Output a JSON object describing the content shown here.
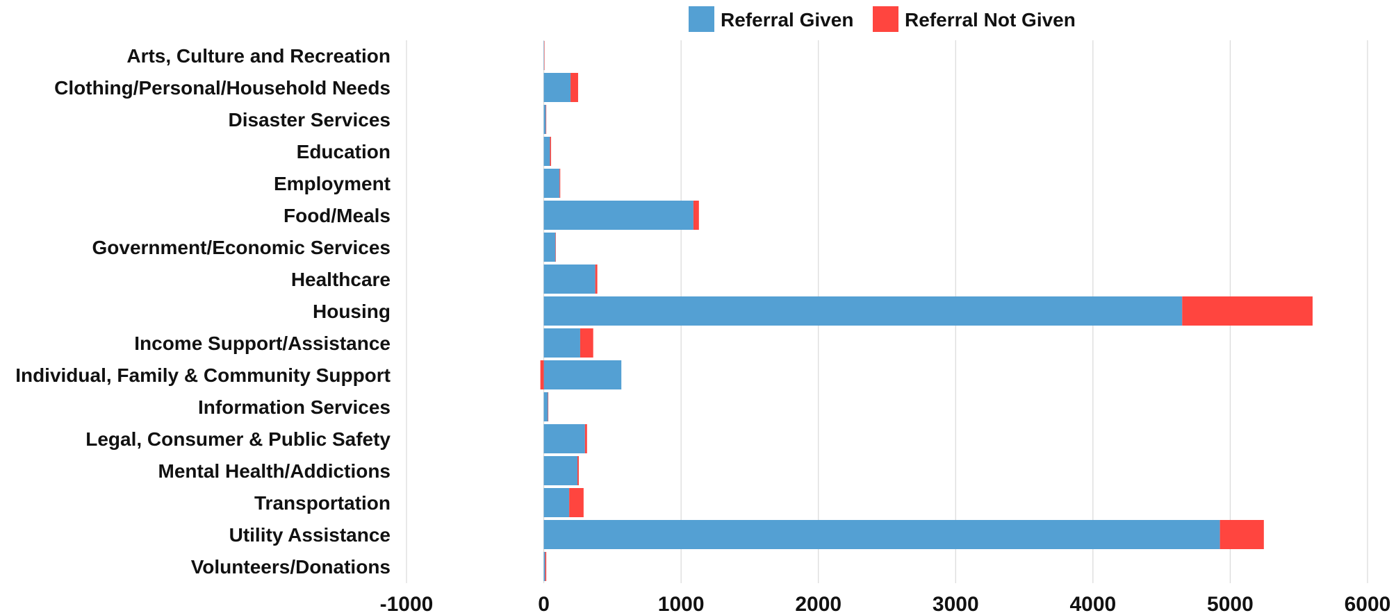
{
  "chart_data": {
    "type": "bar",
    "orientation": "horizontal",
    "stacked": true,
    "categories": [
      "Arts, Culture and Recreation",
      "Clothing/Personal/Household Needs",
      "Disaster Services",
      "Education",
      "Employment",
      "Food/Meals",
      "Government/Economic Services",
      "Healthcare",
      "Housing",
      "Income Support/Assistance",
      "Individual, Family & Community Support",
      "Information Services",
      "Legal, Consumer & Public Safety",
      "Mental Health/Addictions",
      "Transportation",
      "Utility Assistance",
      "Volunteers/Donations"
    ],
    "series": [
      {
        "name": "Referral Given",
        "color": "#54a0d3",
        "values": [
          3,
          195,
          15,
          45,
          115,
          1090,
          85,
          375,
          4650,
          265,
          565,
          30,
          300,
          245,
          185,
          4925,
          10
        ]
      },
      {
        "name": "Referral Not Given",
        "color": "#ff453f",
        "values": [
          2,
          55,
          3,
          8,
          5,
          40,
          3,
          15,
          950,
          95,
          -25,
          3,
          15,
          10,
          105,
          320,
          8
        ]
      }
    ],
    "xlim": [
      -1000,
      6000
    ],
    "xticks": [
      "-1000",
      "0",
      "1000",
      "2000",
      "3000",
      "4000",
      "5000",
      "6000"
    ],
    "grid": true,
    "legend_position": "top-center"
  }
}
